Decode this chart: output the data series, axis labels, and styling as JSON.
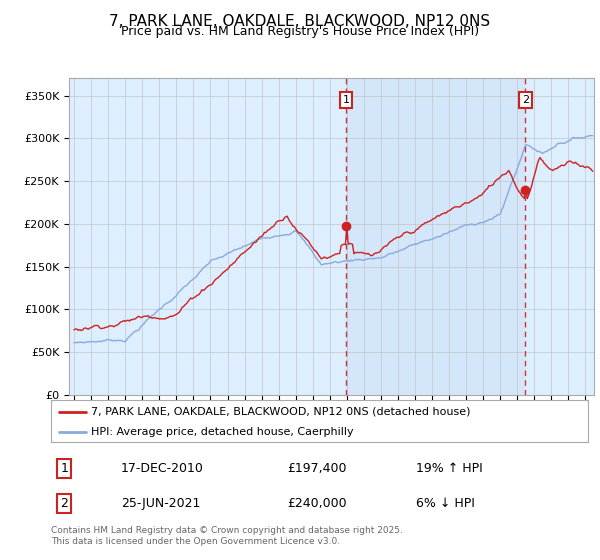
{
  "title": "7, PARK LANE, OAKDALE, BLACKWOOD, NP12 0NS",
  "subtitle": "Price paid vs. HM Land Registry's House Price Index (HPI)",
  "title_fontsize": 11,
  "subtitle_fontsize": 9,
  "ylabel_ticks": [
    "£0",
    "£50K",
    "£100K",
    "£150K",
    "£200K",
    "£250K",
    "£300K",
    "£350K"
  ],
  "ytick_values": [
    0,
    50000,
    100000,
    150000,
    200000,
    250000,
    300000,
    350000
  ],
  "ylim": [
    0,
    370000
  ],
  "xlim_start": 1994.7,
  "xlim_end": 2025.5,
  "purchase_dates": [
    2010.96,
    2021.48
  ],
  "purchase_values_red": [
    197400,
    240000
  ],
  "purchase_labels": [
    "1",
    "2"
  ],
  "legend_line1": "7, PARK LANE, OAKDALE, BLACKWOOD, NP12 0NS (detached house)",
  "legend_line2": "HPI: Average price, detached house, Caerphilly",
  "annotation1_date": "17-DEC-2010",
  "annotation1_price": "£197,400",
  "annotation1_hpi": "19% ↑ HPI",
  "annotation2_date": "25-JUN-2021",
  "annotation2_price": "£240,000",
  "annotation2_hpi": "6% ↓ HPI",
  "footnote": "Contains HM Land Registry data © Crown copyright and database right 2025.\nThis data is licensed under the Open Government Licence v3.0.",
  "line_color_red": "#cc2222",
  "line_color_blue": "#88aadd",
  "bg_color": "#ddeeff",
  "bg_color_highlight": "#cce0f5",
  "plot_bg": "#ffffff",
  "grid_color": "#bbbbbb",
  "annotation_box_color": "#cc2222",
  "annotation_box_fill": "#ffffff"
}
